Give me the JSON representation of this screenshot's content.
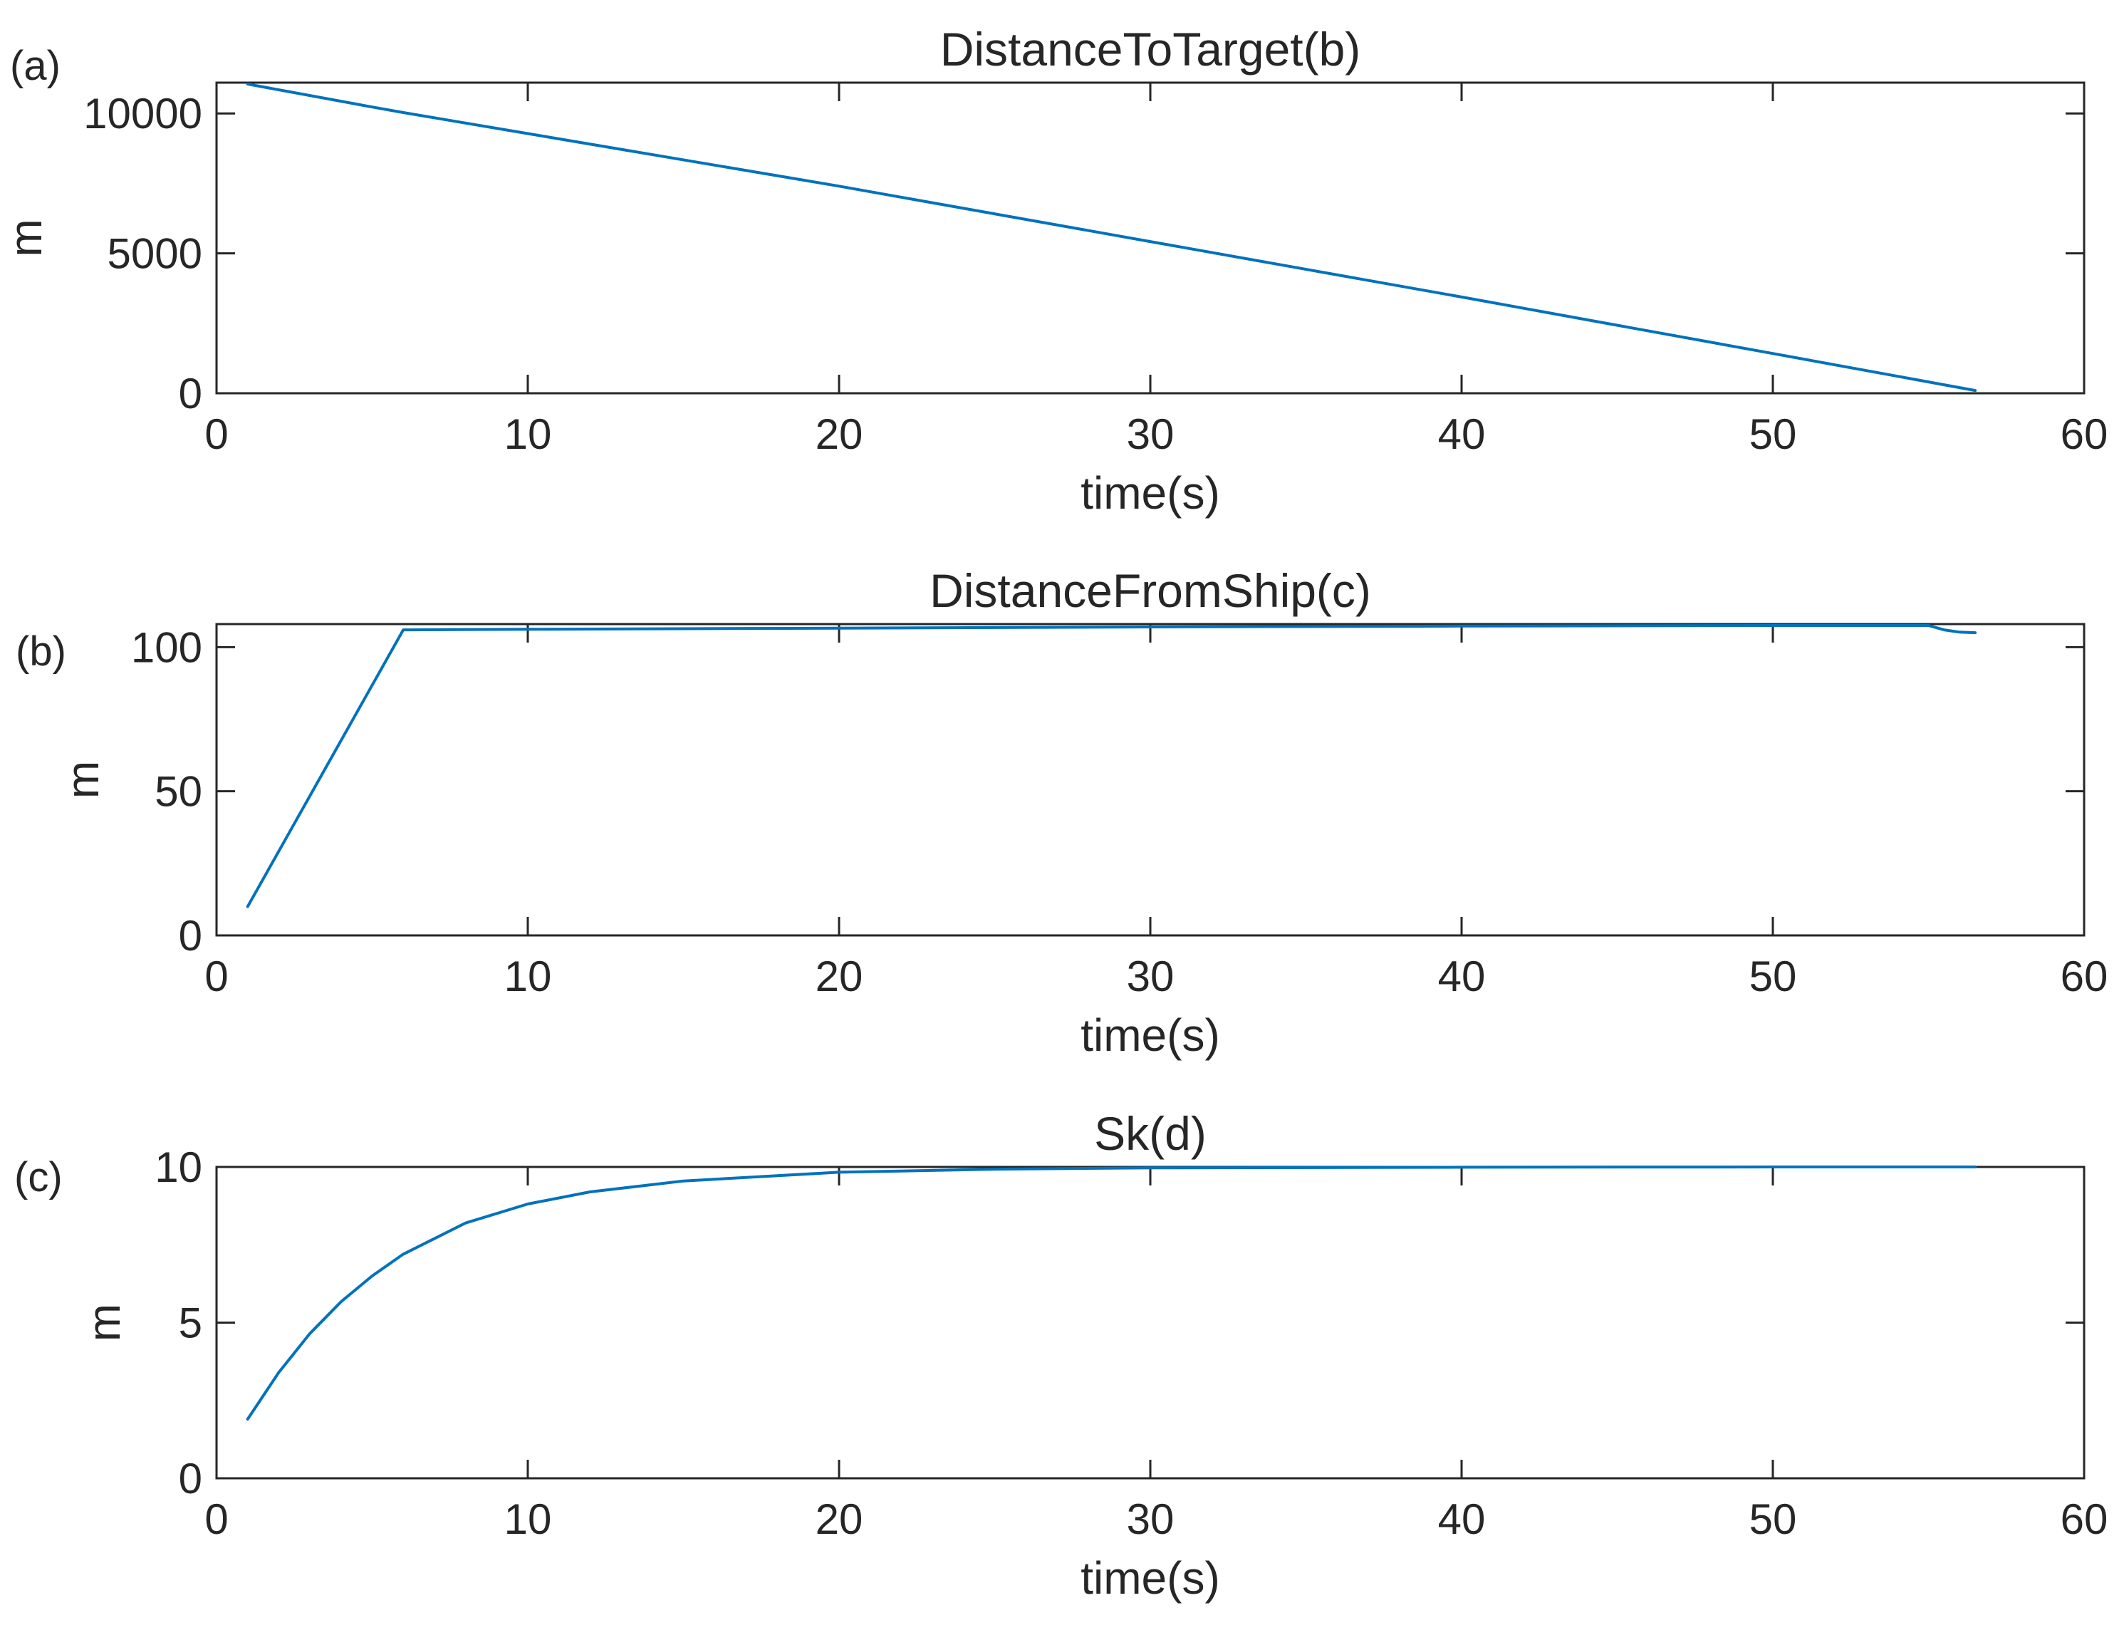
{
  "chart_data": [
    {
      "panel_label": "(a)",
      "type": "line",
      "title": "DistanceToTarget(b)",
      "xlabel": "time(s)",
      "ylabel": "m",
      "xlim": [
        0,
        60
      ],
      "ylim": [
        0,
        11100
      ],
      "xticks": [
        0,
        10,
        20,
        30,
        40,
        50,
        60
      ],
      "yticks": [
        0,
        5000,
        10000
      ],
      "grid": false,
      "line_color": "#0072BD",
      "series": [
        {
          "x": [
            1,
            5,
            6,
            10,
            20,
            30,
            40,
            50,
            56.5
          ],
          "values": [
            11050,
            10230,
            10030,
            9280,
            7400,
            5420,
            3440,
            1420,
            100
          ]
        }
      ]
    },
    {
      "panel_label": "(b)",
      "type": "line",
      "title": "DistanceFromShip(c)",
      "xlabel": "time(s)",
      "ylabel": "m",
      "xlim": [
        0,
        60
      ],
      "ylim": [
        0,
        108
      ],
      "xticks": [
        0,
        10,
        20,
        30,
        40,
        50,
        60
      ],
      "yticks": [
        0,
        50,
        100
      ],
      "grid": false,
      "line_color": "#0072BD",
      "series": [
        {
          "x": [
            1,
            6,
            6.2,
            10,
            20,
            30,
            40,
            50,
            55,
            55.5,
            56,
            56.5
          ],
          "values": [
            10,
            106,
            106,
            106.2,
            106.6,
            107,
            107.3,
            107.5,
            107.5,
            106,
            105.2,
            105
          ]
        }
      ]
    },
    {
      "panel_label": "(c)",
      "type": "line",
      "title": "Sk(d)",
      "xlabel": "time(s)",
      "ylabel": "m",
      "xlim": [
        0,
        60
      ],
      "ylim": [
        0,
        10
      ],
      "xticks": [
        0,
        10,
        20,
        30,
        40,
        50,
        60
      ],
      "yticks": [
        0,
        5,
        10
      ],
      "grid": false,
      "line_color": "#0072BD",
      "series": [
        {
          "x": [
            1,
            2,
            3,
            4,
            5,
            6,
            8,
            10,
            12,
            15,
            20,
            25,
            30,
            40,
            50,
            56.5
          ],
          "values": [
            1.9,
            3.4,
            4.65,
            5.67,
            6.5,
            7.2,
            8.2,
            8.81,
            9.2,
            9.55,
            9.83,
            9.93,
            9.97,
            9.99,
            10,
            10
          ]
        }
      ]
    }
  ]
}
